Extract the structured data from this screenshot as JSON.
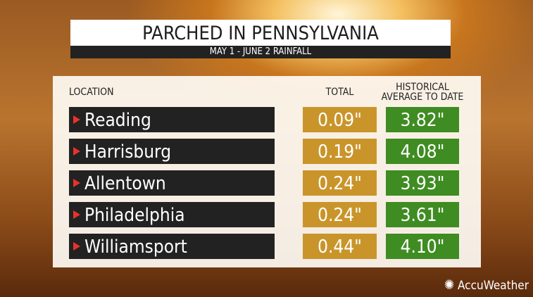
{
  "header": {
    "title": "PARCHED IN PENNSYLVANIA",
    "subtitle": "MAY 1 - JUNE 2 RAINFALL"
  },
  "table": {
    "columns": [
      "LOCATION",
      "TOTAL",
      "HISTORICAL AVERAGE TO DATE"
    ],
    "rows": [
      [
        "Reading",
        "0.09\"",
        "3.82\""
      ],
      [
        "Harrisburg",
        "0.19\"",
        "4.08\""
      ],
      [
        "Allentown",
        "0.24\"",
        "3.93\""
      ],
      [
        "Philadelphia",
        "0.24\"",
        "3.61\""
      ],
      [
        "Williamsport",
        "0.44\"",
        "4.10\""
      ]
    ]
  },
  "brand": "AccuWeather"
}
